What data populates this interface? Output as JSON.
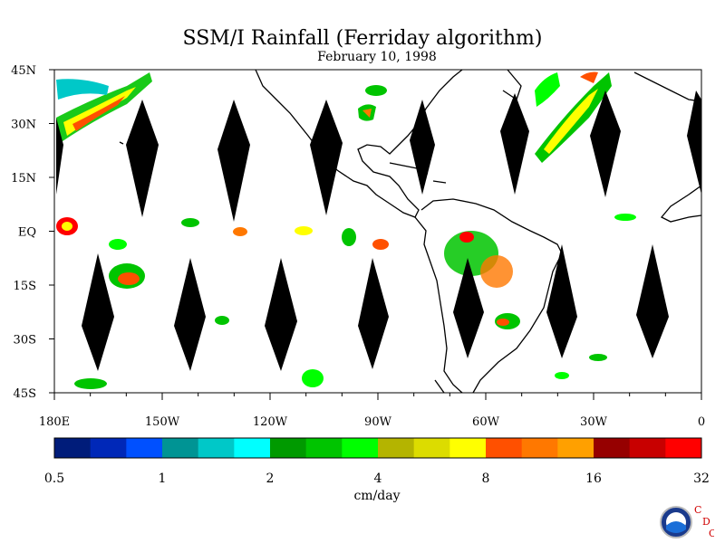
{
  "title": "SSM/I Rainfall (Ferriday algorithm)",
  "subtitle": "February 10, 1998",
  "map": {
    "lat_labels": [
      "45N",
      "30N",
      "15N",
      "EQ",
      "15S",
      "30S",
      "45S"
    ],
    "lon_labels": [
      "180E",
      "150W",
      "120W",
      "90W",
      "60W",
      "30W",
      "0"
    ],
    "lat_range": [
      -45,
      45
    ],
    "lon_range": [
      -180,
      0
    ],
    "missing_swath_color": "#000000",
    "coastline_color": "#000000"
  },
  "colorbar": {
    "unit": "cm/day",
    "tick_labels": [
      "0.5",
      "1",
      "2",
      "4",
      "8",
      "16",
      "32"
    ],
    "colors": [
      "#001c7a",
      "#0028b8",
      "#0050ff",
      "#009494",
      "#00c8c8",
      "#00ffff",
      "#009a00",
      "#00c400",
      "#00ff00",
      "#b4b400",
      "#dcdc00",
      "#ffff00",
      "#ff5000",
      "#ff7800",
      "#ffa000",
      "#960000",
      "#c80000",
      "#ff0000"
    ]
  },
  "logo": {
    "name": "NOAA",
    "letters": [
      "C",
      "D",
      "C"
    ]
  }
}
